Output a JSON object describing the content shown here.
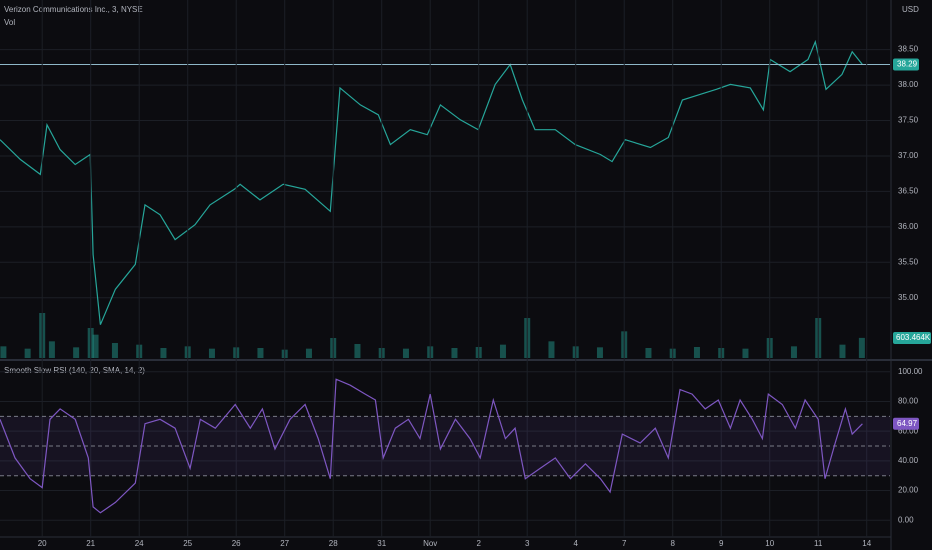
{
  "chart_data": [
    {
      "type": "line",
      "title": "Verizon Communications Inc., 3, NYSE",
      "currency": "USD",
      "color": "#26a69a",
      "x": [
        -0.87,
        -0.45,
        -0.04,
        0.1,
        0.37,
        0.68,
        0.99,
        1.05,
        1.2,
        1.51,
        1.92,
        2.12,
        2.43,
        2.74,
        3.15,
        3.46,
        3.96,
        4.08,
        4.49,
        4.97,
        5.42,
        5.94,
        6.14,
        6.56,
        6.93,
        7.18,
        7.59,
        7.94,
        8.21,
        8.62,
        8.99,
        9.34,
        9.65,
        9.9,
        10.16,
        10.58,
        10.99,
        11.51,
        11.75,
        12.02,
        12.54,
        12.91,
        13.2,
        13.57,
        13.9,
        14.19,
        14.6,
        14.87,
        15.01,
        15.42,
        15.79,
        15.94,
        16.16,
        16.49,
        16.7,
        16.91
      ],
      "values": [
        37.23,
        36.95,
        36.74,
        37.44,
        37.09,
        36.88,
        37.02,
        35.61,
        34.62,
        35.12,
        35.47,
        36.31,
        36.17,
        35.82,
        36.03,
        36.31,
        36.53,
        36.6,
        36.38,
        36.6,
        36.53,
        36.22,
        37.96,
        37.72,
        37.58,
        37.16,
        37.37,
        37.3,
        37.72,
        37.51,
        37.37,
        38.01,
        38.29,
        37.79,
        37.37,
        37.37,
        37.16,
        37.02,
        36.92,
        37.23,
        37.12,
        37.26,
        37.79,
        37.87,
        37.94,
        38.01,
        37.96,
        37.65,
        38.36,
        38.19,
        38.36,
        38.61,
        37.94,
        38.15,
        38.47,
        38.29
      ],
      "last_value": 38.29,
      "xlim": [
        -0.87,
        17.48
      ],
      "ylim": [
        34.15,
        39.2
      ],
      "yticks": [
        {
          "value": 35,
          "label": "35.00"
        },
        {
          "value": 35.5,
          "label": "35.50"
        },
        {
          "value": 36,
          "label": "36.00"
        },
        {
          "value": 36.5,
          "label": "36.50"
        },
        {
          "value": 37,
          "label": "37.00"
        },
        {
          "value": 37.5,
          "label": "37.50"
        },
        {
          "value": 38,
          "label": "38.00"
        },
        {
          "value": 38.5,
          "label": "38.50"
        }
      ],
      "grid": true
    },
    {
      "type": "bar",
      "title": "Vol",
      "color": "#26a69a",
      "x": [
        -0.8,
        -0.3,
        0.0,
        0.2,
        0.7,
        1.0,
        1.1,
        1.5,
        2.0,
        2.5,
        3.0,
        3.5,
        4.0,
        4.5,
        5.0,
        5.5,
        6.0,
        6.5,
        7.0,
        7.5,
        8.0,
        8.5,
        9.0,
        9.5,
        10.0,
        10.5,
        11.0,
        11.5,
        12.0,
        12.5,
        13.0,
        13.5,
        14.0,
        14.5,
        15.0,
        15.5,
        16.0,
        16.5,
        16.9
      ],
      "values": [
        350000,
        280000,
        1350000,
        500000,
        320000,
        900000,
        700000,
        450000,
        400000,
        300000,
        350000,
        280000,
        320000,
        300000,
        250000,
        280000,
        600000,
        420000,
        300000,
        280000,
        350000,
        300000,
        330000,
        400000,
        1200000,
        500000,
        350000,
        320000,
        800000,
        300000,
        280000,
        330000,
        300000,
        280000,
        600000,
        350000,
        1200000,
        400000,
        603464
      ],
      "value_labels": [
        null,
        null,
        null,
        null,
        null,
        null,
        null,
        null,
        null,
        null,
        null,
        null,
        null,
        null,
        null,
        null,
        null,
        null,
        null,
        null,
        null,
        null,
        null,
        null,
        null,
        null,
        null,
        null,
        null,
        null,
        null,
        null,
        null,
        null,
        null,
        null,
        null,
        null,
        "603.464K"
      ],
      "xlim": [
        -0.87,
        17.48
      ],
      "ylim": [
        0,
        3000000
      ]
    },
    {
      "type": "line",
      "title": "Smooth Slow RSI (140, 20, SMA, 14, 2)",
      "color": "#7e57c2",
      "x": [
        -0.87,
        -0.56,
        -0.25,
        0,
        0.16,
        0.37,
        0.68,
        0.95,
        1.05,
        1.2,
        1.51,
        1.92,
        2.12,
        2.43,
        2.74,
        3.05,
        3.26,
        3.57,
        3.98,
        4.29,
        4.54,
        4.8,
        5.11,
        5.42,
        5.69,
        5.94,
        6.06,
        6.35,
        6.66,
        6.87,
        7.03,
        7.28,
        7.55,
        7.79,
        8.0,
        8.21,
        8.52,
        8.82,
        9.03,
        9.3,
        9.55,
        9.75,
        9.96,
        10.27,
        10.58,
        10.89,
        11.2,
        11.51,
        11.71,
        11.96,
        12.33,
        12.64,
        12.91,
        13.15,
        13.4,
        13.67,
        13.94,
        14.19,
        14.39,
        14.64,
        14.85,
        14.97,
        15.26,
        15.53,
        15.73,
        16.0,
        16.14,
        16.35,
        16.56,
        16.7,
        16.91
      ],
      "values": [
        68,
        42,
        28,
        22,
        68,
        75,
        68,
        42,
        9,
        5,
        12,
        25,
        65,
        68,
        62,
        35,
        68,
        62,
        78,
        62,
        75,
        48,
        68,
        78,
        55,
        28,
        95,
        91,
        85,
        81,
        42,
        62,
        68,
        55,
        85,
        48,
        68,
        55,
        42,
        81,
        55,
        62,
        28,
        35,
        42,
        28,
        38,
        28,
        19,
        58,
        52,
        62,
        42,
        88,
        85,
        75,
        81,
        62,
        81,
        68,
        55,
        85,
        78,
        62,
        81,
        68,
        28,
        52,
        75,
        58,
        64.97
      ],
      "last_value": 64.97,
      "levels": [
        70,
        50,
        30
      ],
      "xlim": [
        -0.87,
        17.48
      ],
      "ylim": [
        -11.3,
        106.6
      ],
      "yticks": [
        {
          "value": 0,
          "label": "0.00"
        },
        {
          "value": 20,
          "label": "20.00"
        },
        {
          "value": 40,
          "label": "40.00"
        },
        {
          "value": 60,
          "label": "60.00"
        },
        {
          "value": 80,
          "label": "80.00"
        },
        {
          "value": 100,
          "label": "100.00"
        }
      ],
      "xticks": [
        {
          "value": 0,
          "label": "20"
        },
        {
          "value": 1,
          "label": "21"
        },
        {
          "value": 2,
          "label": "24"
        },
        {
          "value": 3,
          "label": "25"
        },
        {
          "value": 4,
          "label": "26"
        },
        {
          "value": 5,
          "label": "27"
        },
        {
          "value": 6,
          "label": "28"
        },
        {
          "value": 7,
          "label": "31"
        },
        {
          "value": 8,
          "label": "Nov"
        },
        {
          "value": 9,
          "label": "2"
        },
        {
          "value": 10,
          "label": "3"
        },
        {
          "value": 11,
          "label": "4"
        },
        {
          "value": 12,
          "label": "7"
        },
        {
          "value": 13,
          "label": "8"
        },
        {
          "value": 14,
          "label": "9"
        },
        {
          "value": 15,
          "label": "10"
        },
        {
          "value": 16,
          "label": "11"
        },
        {
          "value": 17,
          "label": "14"
        }
      ],
      "grid": true
    }
  ]
}
